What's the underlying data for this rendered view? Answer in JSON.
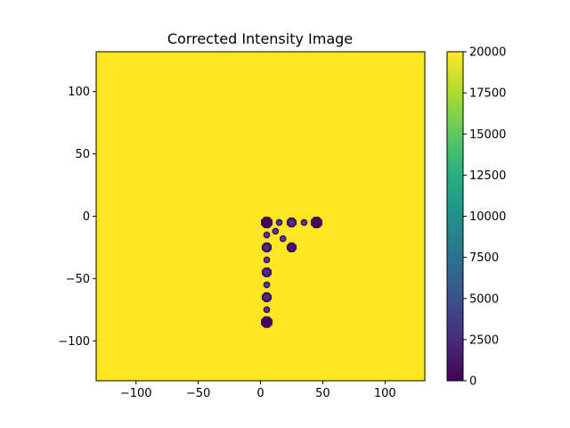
{
  "chart_data": {
    "type": "heatmap",
    "title": "Corrected Intensity Image",
    "xlabel": "",
    "ylabel": "",
    "xlim": [
      -132,
      132
    ],
    "ylim": [
      -132,
      132
    ],
    "background_value": 20000,
    "x_ticks": [
      -100,
      -50,
      0,
      50,
      100
    ],
    "x_tick_labels": [
      "−100",
      "−50",
      "0",
      "50",
      "100"
    ],
    "y_ticks": [
      100,
      50,
      0,
      -50,
      -100
    ],
    "y_tick_labels": [
      "100",
      "50",
      "0",
      "−50",
      "−100"
    ],
    "colorbar": {
      "min": 0,
      "max": 20000,
      "colormap": "viridis",
      "ticks": [
        0,
        2500,
        5000,
        7500,
        10000,
        12500,
        15000,
        17500,
        20000
      ],
      "tick_labels": [
        "0",
        "2500",
        "5000",
        "7500",
        "10000",
        "12500",
        "15000",
        "17500",
        "20000"
      ]
    },
    "spots": [
      {
        "x": 5,
        "y": -5,
        "size": "large",
        "value": 300
      },
      {
        "x": 15,
        "y": -5,
        "size": "small",
        "value": 4500
      },
      {
        "x": 25,
        "y": -5,
        "size": "medium",
        "value": 3000
      },
      {
        "x": 35,
        "y": -5,
        "size": "small",
        "value": 4500
      },
      {
        "x": 45,
        "y": -5,
        "size": "large",
        "value": 300
      },
      {
        "x": 12,
        "y": -12,
        "size": "small",
        "value": 4500
      },
      {
        "x": 18,
        "y": -18,
        "size": "small",
        "value": 4500
      },
      {
        "x": 25,
        "y": -25,
        "size": "medium",
        "value": 1200
      },
      {
        "x": 5,
        "y": -15,
        "size": "small",
        "value": 4500
      },
      {
        "x": 5,
        "y": -25,
        "size": "medium",
        "value": 3000
      },
      {
        "x": 5,
        "y": -35,
        "size": "small",
        "value": 4500
      },
      {
        "x": 5,
        "y": -45,
        "size": "medium",
        "value": 3000
      },
      {
        "x": 5,
        "y": -55,
        "size": "small",
        "value": 4500
      },
      {
        "x": 5,
        "y": -65,
        "size": "medium",
        "value": 3000
      },
      {
        "x": 5,
        "y": -75,
        "size": "small",
        "value": 4500
      },
      {
        "x": 5,
        "y": -85,
        "size": "large",
        "value": 300
      }
    ]
  }
}
